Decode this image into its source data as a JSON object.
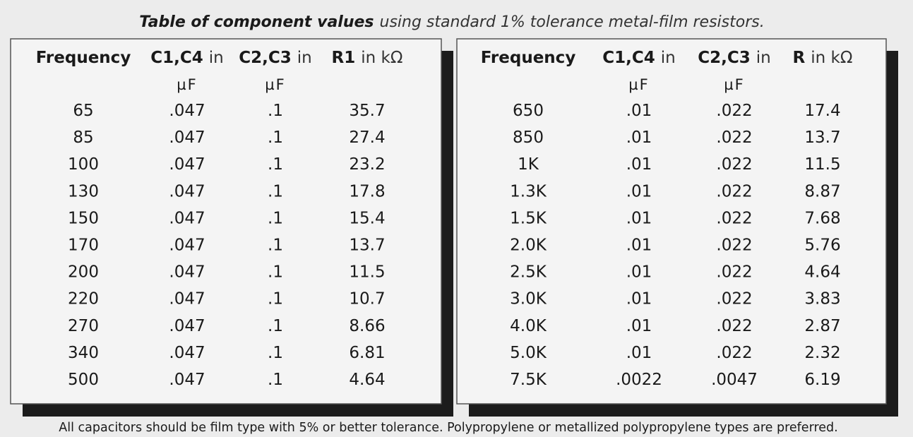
{
  "title": {
    "bold": "Table of component values",
    "text": "using standard 1% tolerance metal-film resistors."
  },
  "tables": [
    {
      "headers": [
        {
          "bold": "Frequency"
        },
        {
          "bold": "C1,C4",
          "text": "in",
          "unit": "µF"
        },
        {
          "bold": "C2,C3",
          "text": "in",
          "unit": "µF"
        },
        {
          "bold": "R1",
          "text": "in kΩ"
        }
      ],
      "rows": [
        [
          "65",
          ".047",
          ".1",
          "35.7"
        ],
        [
          "85",
          ".047",
          ".1",
          "27.4"
        ],
        [
          "100",
          ".047",
          ".1",
          "23.2"
        ],
        [
          "130",
          ".047",
          ".1",
          "17.8"
        ],
        [
          "150",
          ".047",
          ".1",
          "15.4"
        ],
        [
          "170",
          ".047",
          ".1",
          "13.7"
        ],
        [
          "200",
          ".047",
          ".1",
          "11.5"
        ],
        [
          "220",
          ".047",
          ".1",
          "10.7"
        ],
        [
          "270",
          ".047",
          ".1",
          "8.66"
        ],
        [
          "340",
          ".047",
          ".1",
          "6.81"
        ],
        [
          "500",
          ".047",
          ".1",
          "4.64"
        ]
      ]
    },
    {
      "headers": [
        {
          "bold": "Frequency"
        },
        {
          "bold": "C1,C4",
          "text": "in",
          "unit": "µF"
        },
        {
          "bold": "C2,C3",
          "text": "in",
          "unit": "µF"
        },
        {
          "bold": "R",
          "text": "in kΩ"
        }
      ],
      "rows": [
        [
          "650",
          ".01",
          ".022",
          "17.4"
        ],
        [
          "850",
          ".01",
          ".022",
          "13.7"
        ],
        [
          "1K",
          ".01",
          ".022",
          "11.5"
        ],
        [
          "1.3K",
          ".01",
          ".022",
          "8.87"
        ],
        [
          "1.5K",
          ".01",
          ".022",
          "7.68"
        ],
        [
          "2.0K",
          ".01",
          ".022",
          "5.76"
        ],
        [
          "2.5K",
          ".01",
          ".022",
          "4.64"
        ],
        [
          "3.0K",
          ".01",
          ".022",
          "3.83"
        ],
        [
          "4.0K",
          ".01",
          ".022",
          "2.87"
        ],
        [
          "5.0K",
          ".01",
          ".022",
          "2.32"
        ],
        [
          "7.5K",
          ".0022",
          ".0047",
          "6.19"
        ]
      ]
    }
  ],
  "footer": "All capacitors should be film type with 5% or better tolerance.  Polypropylene or metallized polypropylene types are preferred."
}
